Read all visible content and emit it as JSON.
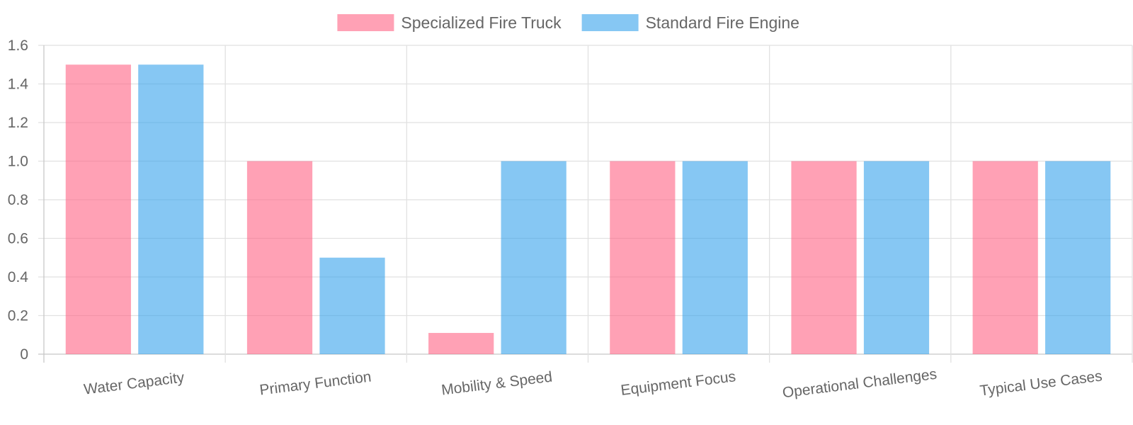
{
  "chart_data": {
    "type": "bar",
    "categories": [
      "Water Capacity",
      "Primary Function",
      "Mobility & Speed",
      "Equipment Focus",
      "Operational Challenges",
      "Typical Use Cases"
    ],
    "series": [
      {
        "name": "Specialized Fire Truck",
        "values": [
          1.5,
          1.0,
          0.11,
          1.0,
          1.0,
          1.0
        ],
        "color": "#ff6384"
      },
      {
        "name": "Standard Fire Engine",
        "values": [
          1.5,
          0.5,
          1.0,
          1.0,
          1.0,
          1.0
        ],
        "color": "#36a2eb"
      }
    ],
    "ylim": [
      0,
      1.6
    ],
    "yticks": [
      "0",
      "0.2",
      "0.4",
      "0.6",
      "0.8",
      "1.0",
      "1.2",
      "1.4",
      "1.6"
    ],
    "grid": true,
    "legend_position": "top-center",
    "title": "",
    "xlabel": "",
    "ylabel": ""
  }
}
